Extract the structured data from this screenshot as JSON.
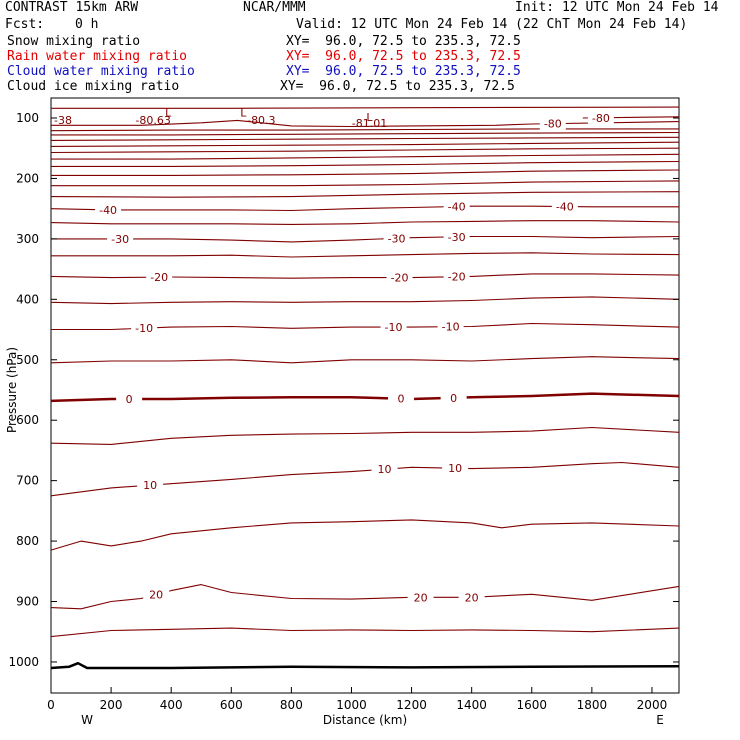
{
  "header": {
    "model": "CONTRAST 15km ARW",
    "center": "NCAR/MMM",
    "init": "Init: 12 UTC Mon 24 Feb 14",
    "fcst_label": "Fcst:",
    "fcst_value": "0 h",
    "valid": "Valid: 12 UTC Mon 24 Feb 14 (22 ChT Mon 24 Feb 14)",
    "fields": [
      {
        "name": "Snow mixing ratio",
        "xy": "XY=  96.0, 72.5 to 235.3, 72.5",
        "color": "#000000"
      },
      {
        "name": "Rain water mixing ratio",
        "xy": "XY=  96.0, 72.5 to 235.3, 72.5",
        "color": "#e00000"
      },
      {
        "name": "Cloud water mixing ratio",
        "xy": "XY=  96.0, 72.5 to 235.3, 72.5",
        "color": "#1010c0"
      },
      {
        "name": "Cloud ice mixing ratio",
        "xy": "XY=  96.0, 72.5 to 235.3, 72.5",
        "color": "#000000"
      }
    ]
  },
  "chart_data": {
    "type": "line",
    "xlabel": "Distance (km)",
    "ylabel": "Pressure (hPa)",
    "xlim": [
      0,
      2090
    ],
    "ylim": [
      1050,
      75
    ],
    "x_ticks": [
      "0",
      "200",
      "400",
      "600",
      "800",
      "1000",
      "1200",
      "1400",
      "1600",
      "1800",
      "2000"
    ],
    "y_ticks": [
      "100",
      "200",
      "300",
      "400",
      "500",
      "600",
      "700",
      "800",
      "900",
      "1000"
    ],
    "x_end_labels": {
      "left": "W",
      "right": "E"
    },
    "contour_color": "#800000",
    "terrain_color": "#000000",
    "series": [
      {
        "values": [
          [
            0,
            1010
          ],
          [
            60,
            1008
          ],
          [
            90,
            1002
          ],
          [
            120,
            1010
          ],
          [
            400,
            1010
          ],
          [
            800,
            1008
          ],
          [
            1200,
            1009
          ],
          [
            1600,
            1008
          ],
          [
            2090,
            1007
          ]
        ],
        "terrain": true
      },
      {
        "values": [
          [
            0,
            958
          ],
          [
            200,
            948
          ],
          [
            400,
            946
          ],
          [
            600,
            944
          ],
          [
            800,
            948
          ],
          [
            1000,
            947
          ],
          [
            1200,
            948
          ],
          [
            1400,
            947
          ],
          [
            1600,
            948
          ],
          [
            1800,
            950
          ],
          [
            2090,
            944
          ]
        ]
      },
      {
        "values": [
          [
            0,
            910
          ],
          [
            100,
            912
          ],
          [
            200,
            900
          ],
          [
            300,
            895
          ],
          [
            400,
            882
          ],
          [
            500,
            872
          ],
          [
            600,
            885
          ],
          [
            800,
            895
          ],
          [
            1000,
            896
          ],
          [
            1200,
            893
          ],
          [
            1400,
            893
          ],
          [
            1600,
            888
          ],
          [
            1800,
            898
          ],
          [
            2090,
            875
          ]
        ],
        "label": "20",
        "label_x": [
          350,
          1230,
          1400
        ]
      },
      {
        "values": [
          [
            0,
            815
          ],
          [
            100,
            800
          ],
          [
            200,
            808
          ],
          [
            300,
            800
          ],
          [
            400,
            788
          ],
          [
            600,
            778
          ],
          [
            800,
            770
          ],
          [
            1000,
            768
          ],
          [
            1200,
            765
          ],
          [
            1400,
            770
          ],
          [
            1500,
            778
          ],
          [
            1600,
            772
          ],
          [
            1800,
            770
          ],
          [
            2090,
            775
          ]
        ]
      },
      {
        "values": [
          [
            0,
            725
          ],
          [
            200,
            712
          ],
          [
            400,
            705
          ],
          [
            600,
            698
          ],
          [
            800,
            690
          ],
          [
            1000,
            685
          ],
          [
            1200,
            678
          ],
          [
            1400,
            680
          ],
          [
            1600,
            678
          ],
          [
            1800,
            672
          ],
          [
            1900,
            670
          ],
          [
            2090,
            678
          ]
        ],
        "label": "10",
        "label_x": [
          330,
          1110,
          1345
        ]
      },
      {
        "values": [
          [
            0,
            638
          ],
          [
            200,
            640
          ],
          [
            400,
            630
          ],
          [
            600,
            625
          ],
          [
            800,
            623
          ],
          [
            1000,
            622
          ],
          [
            1200,
            620
          ],
          [
            1400,
            620
          ],
          [
            1600,
            618
          ],
          [
            1800,
            612
          ],
          [
            2090,
            620
          ]
        ]
      },
      {
        "values": [
          [
            0,
            568
          ],
          [
            200,
            565
          ],
          [
            400,
            565
          ],
          [
            600,
            563
          ],
          [
            800,
            562
          ],
          [
            1000,
            562
          ],
          [
            1200,
            565
          ],
          [
            1400,
            562
          ],
          [
            1600,
            560
          ],
          [
            1800,
            556
          ],
          [
            2090,
            560
          ]
        ],
        "label": "0",
        "label_x": [
          260,
          1165,
          1340
        ],
        "bold": true
      },
      {
        "values": [
          [
            0,
            505
          ],
          [
            200,
            502
          ],
          [
            400,
            502
          ],
          [
            600,
            500
          ],
          [
            800,
            505
          ],
          [
            1000,
            500
          ],
          [
            1200,
            500
          ],
          [
            1400,
            502
          ],
          [
            1600,
            498
          ],
          [
            1800,
            495
          ],
          [
            2090,
            498
          ]
        ]
      },
      {
        "values": [
          [
            0,
            450
          ],
          [
            200,
            450
          ],
          [
            400,
            446
          ],
          [
            600,
            445
          ],
          [
            800,
            448
          ],
          [
            1000,
            446
          ],
          [
            1200,
            446
          ],
          [
            1400,
            445
          ],
          [
            1600,
            440
          ],
          [
            1800,
            442
          ],
          [
            2090,
            446
          ]
        ],
        "label": "-10",
        "label_x": [
          310,
          1140,
          1330
        ]
      },
      {
        "values": [
          [
            0,
            405
          ],
          [
            200,
            407
          ],
          [
            400,
            405
          ],
          [
            600,
            404
          ],
          [
            800,
            405
          ],
          [
            1000,
            404
          ],
          [
            1200,
            404
          ],
          [
            1400,
            402
          ],
          [
            1600,
            398
          ],
          [
            1800,
            396
          ],
          [
            2090,
            400
          ]
        ]
      },
      {
        "values": [
          [
            0,
            362
          ],
          [
            200,
            364
          ],
          [
            400,
            363
          ],
          [
            600,
            364
          ],
          [
            800,
            365
          ],
          [
            1000,
            364
          ],
          [
            1200,
            364
          ],
          [
            1400,
            362
          ],
          [
            1600,
            358
          ],
          [
            1800,
            358
          ],
          [
            2090,
            360
          ]
        ],
        "label": "-20",
        "label_x": [
          360,
          1160,
          1350
        ]
      },
      {
        "values": [
          [
            0,
            328
          ],
          [
            200,
            328
          ],
          [
            400,
            328
          ],
          [
            600,
            327
          ],
          [
            800,
            330
          ],
          [
            1000,
            328
          ],
          [
            1200,
            326
          ],
          [
            1400,
            324
          ],
          [
            1600,
            323
          ],
          [
            1800,
            325
          ],
          [
            2090,
            326
          ]
        ]
      },
      {
        "values": [
          [
            0,
            300
          ],
          [
            200,
            300
          ],
          [
            400,
            300
          ],
          [
            600,
            302
          ],
          [
            800,
            305
          ],
          [
            1000,
            302
          ],
          [
            1200,
            298
          ],
          [
            1400,
            296
          ],
          [
            1600,
            296
          ],
          [
            1800,
            298
          ],
          [
            2090,
            296
          ]
        ],
        "label": "-30",
        "label_x": [
          230,
          1150,
          1350
        ]
      },
      {
        "values": [
          [
            0,
            273
          ],
          [
            200,
            275
          ],
          [
            400,
            275
          ],
          [
            600,
            275
          ],
          [
            800,
            276
          ],
          [
            1000,
            275
          ],
          [
            1200,
            272
          ],
          [
            1400,
            271
          ],
          [
            1600,
            270
          ],
          [
            1800,
            270
          ],
          [
            2090,
            272
          ]
        ]
      },
      {
        "values": [
          [
            0,
            250
          ],
          [
            200,
            252
          ],
          [
            400,
            252
          ],
          [
            600,
            252
          ],
          [
            800,
            253
          ],
          [
            1000,
            250
          ],
          [
            1200,
            248
          ],
          [
            1400,
            246
          ],
          [
            1600,
            246
          ],
          [
            1800,
            247
          ],
          [
            2090,
            247
          ]
        ],
        "label": "-40",
        "label_x": [
          190,
          1350,
          1710
        ]
      },
      {
        "values": [
          [
            0,
            230
          ],
          [
            400,
            231
          ],
          [
            800,
            230
          ],
          [
            1200,
            226
          ],
          [
            1600,
            223
          ],
          [
            2090,
            222
          ]
        ]
      },
      {
        "values": [
          [
            0,
            212
          ],
          [
            400,
            212
          ],
          [
            800,
            212
          ],
          [
            1200,
            210
          ],
          [
            1600,
            206
          ],
          [
            2090,
            204
          ]
        ]
      },
      {
        "values": [
          [
            0,
            195
          ],
          [
            400,
            195
          ],
          [
            800,
            194
          ],
          [
            1200,
            192
          ],
          [
            1600,
            188
          ],
          [
            2090,
            186
          ]
        ]
      },
      {
        "values": [
          [
            0,
            180
          ],
          [
            400,
            180
          ],
          [
            800,
            179
          ],
          [
            1200,
            177
          ],
          [
            1600,
            174
          ],
          [
            2090,
            172
          ]
        ]
      },
      {
        "values": [
          [
            0,
            168
          ],
          [
            400,
            168
          ],
          [
            800,
            166
          ],
          [
            1200,
            164
          ],
          [
            1600,
            162
          ],
          [
            2090,
            160
          ]
        ]
      },
      {
        "values": [
          [
            0,
            157
          ],
          [
            400,
            156
          ],
          [
            800,
            155
          ],
          [
            1200,
            153
          ],
          [
            1600,
            151
          ],
          [
            2090,
            150
          ]
        ]
      },
      {
        "values": [
          [
            0,
            147
          ],
          [
            400,
            146
          ],
          [
            800,
            145
          ],
          [
            1200,
            144
          ],
          [
            1600,
            142
          ],
          [
            2090,
            140
          ]
        ]
      },
      {
        "values": [
          [
            0,
            137
          ],
          [
            400,
            136
          ],
          [
            800,
            135
          ],
          [
            1200,
            134
          ],
          [
            1600,
            133
          ],
          [
            2090,
            132
          ]
        ]
      },
      {
        "values": [
          [
            0,
            128
          ],
          [
            400,
            128
          ],
          [
            800,
            127
          ],
          [
            1200,
            126
          ],
          [
            1600,
            125
          ],
          [
            2090,
            124
          ]
        ]
      },
      {
        "values": [
          [
            0,
            121
          ],
          [
            400,
            120
          ],
          [
            800,
            120
          ],
          [
            1200,
            119
          ],
          [
            1600,
            118
          ],
          [
            2090,
            118
          ]
        ]
      },
      {
        "values": [
          [
            0,
            112
          ],
          [
            300,
            112
          ],
          [
            500,
            108
          ],
          [
            620,
            104
          ],
          [
            800,
            113
          ],
          [
            1000,
            114
          ],
          [
            1200,
            113
          ],
          [
            1480,
            112
          ],
          [
            1600,
            110
          ],
          [
            2090,
            106
          ]
        ],
        "label": "-80",
        "label_x": [
          1670
        ]
      },
      {
        "values": [
          [
            1770,
            100
          ],
          [
            2090,
            98
          ]
        ],
        "label": "-80",
        "label_x": [
          1830
        ]
      },
      {
        "values": [
          [
            0,
            84
          ],
          [
            600,
            84
          ],
          [
            1200,
            83
          ],
          [
            2090,
            82
          ]
        ]
      }
    ],
    "annotations": [
      {
        "text": "L",
        "x": 390,
        "p": 91
      },
      {
        "text": "-80.63",
        "x": 340,
        "p": 103
      },
      {
        "text": "L",
        "x": 640,
        "p": 91
      },
      {
        "text": "-80.3",
        "x": 700,
        "p": 103
      },
      {
        "text": "L",
        "x": 1060,
        "p": 98
      },
      {
        "text": "-81.01",
        "x": 1060,
        "p": 108
      },
      {
        "text": "-38",
        "x": 40,
        "p": 103
      }
    ]
  }
}
